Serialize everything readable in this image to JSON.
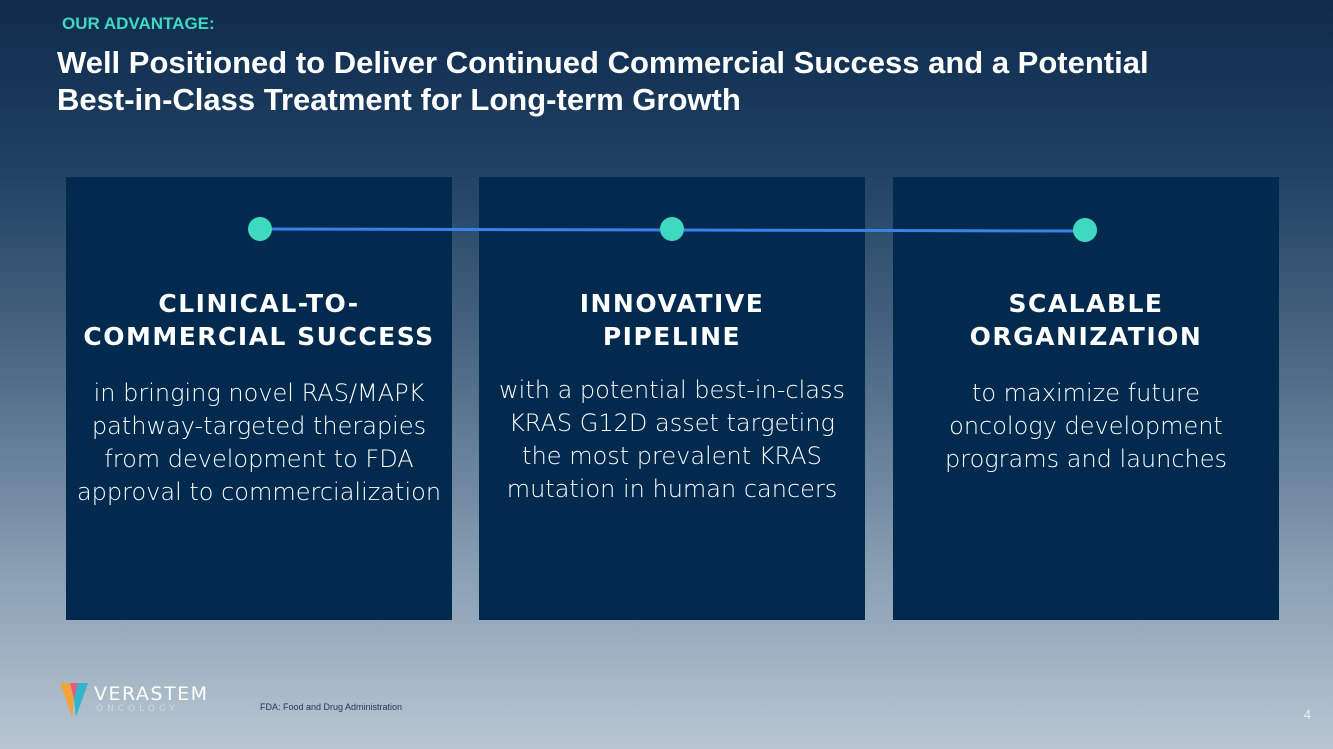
{
  "header": {
    "eyebrow": "OUR ADVANTAGE:",
    "title_lines": [
      "Well Positioned to Deliver Continued Commercial Success and a Potential",
      "Best-in-Class Treatment for Long-term Growth"
    ]
  },
  "cards": [
    {
      "heading_lines": [
        "CLINICAL-TO-",
        "COMMERCIAL SUCCESS"
      ],
      "body": "in bringing novel RAS/MAPK pathway-targeted therapies from development to FDA approval to commercialization"
    },
    {
      "heading_lines": [
        "INNOVATIVE",
        "PIPELINE"
      ],
      "body": "with a potential best-in-class KRAS G12D asset targeting the most prevalent KRAS mutation in human cancers"
    },
    {
      "heading_lines": [
        "SCALABLE",
        "ORGANIZATION"
      ],
      "body": "to maximize future oncology development programs and launches"
    }
  ],
  "footer": {
    "logo_name": "VERASTEM",
    "logo_sub": "ONCOLOGY",
    "footnote": "FDA: Food and Drug Administration",
    "page_number": "4"
  }
}
